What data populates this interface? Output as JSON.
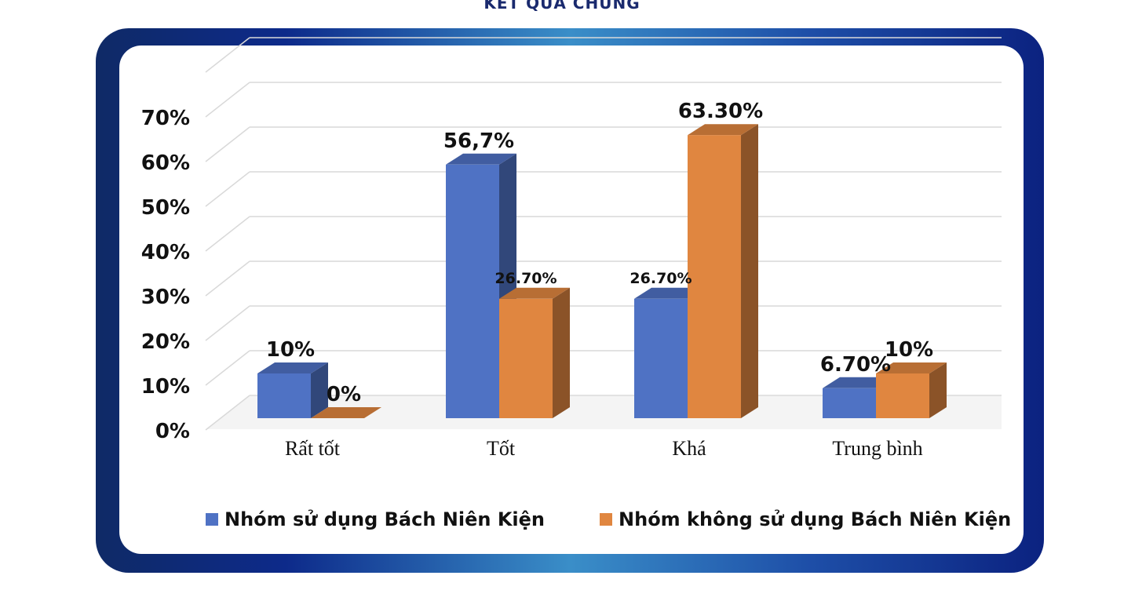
{
  "title": "KẾT QUẢ CHUNG",
  "colors": {
    "series1": "#4f72c4",
    "series2": "#e08640",
    "frame_accent": "#3a8ec8"
  },
  "chart_data": {
    "type": "bar",
    "title": "KẾT QUẢ CHUNG",
    "categories": [
      "Rất tốt",
      "Tốt",
      "Khá",
      "Trung bình"
    ],
    "series": [
      {
        "name": "Nhóm sử dụng Bách Niên Kiện",
        "values": [
          10,
          56.7,
          26.7,
          6.7
        ],
        "labels": [
          "10%",
          "56,7%",
          "26.70%",
          "6.70%"
        ]
      },
      {
        "name": "Nhóm không sử dụng Bách Niên Kiện",
        "values": [
          0,
          26.7,
          63.3,
          10
        ],
        "labels": [
          "0%",
          "26.70%",
          "63.30%",
          "10%"
        ]
      }
    ],
    "yticks": [
      "0%",
      "10%",
      "20%",
      "30%",
      "40%",
      "50%",
      "60%",
      "70%"
    ],
    "ylim": [
      0,
      70
    ],
    "grid": true,
    "legend_position": "bottom",
    "three_d": true
  }
}
